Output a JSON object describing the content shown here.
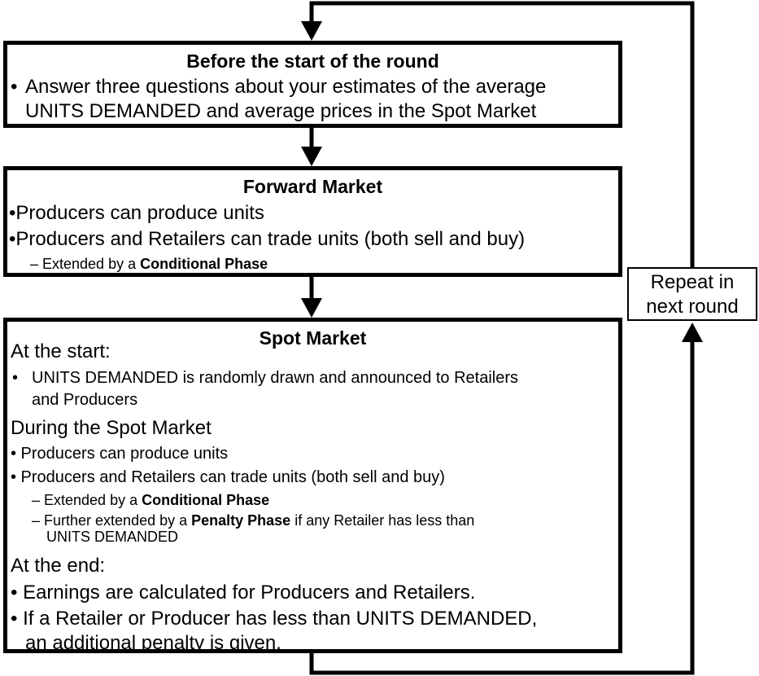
{
  "before": {
    "title": "Before the start of the round",
    "bullet": "•",
    "line1": "Answer three questions about your estimates of the average",
    "line2": "UNITS DEMANDED and average prices in the Spot Market"
  },
  "forward": {
    "title": "Forward Market",
    "item1": "•Producers can produce units",
    "item2": "•Producers and Retailers can trade units (both sell and buy)",
    "sub_prefix": "– Extended by a ",
    "sub_bold": "Conditional Phase"
  },
  "spot": {
    "title": "Spot Market",
    "start_heading": "At the start:",
    "start_bullet": "•",
    "start_line1": "UNITS DEMANDED is randomly drawn and announced to Retailers",
    "start_line2": "and Producers",
    "during_heading": "During the Spot Market",
    "during_item1": "• Producers can produce units",
    "during_item2": "• Producers and Retailers can trade units (both sell and buy)",
    "sub1_prefix": "– Extended by a ",
    "sub1_bold": "Conditional Phase",
    "sub2_prefix": "– Further extended by a ",
    "sub2_bold": "Penalty Phase",
    "sub2_suffix": " if any Retailer has less than",
    "sub2_line2": "UNITS DEMANDED",
    "end_heading": "At the end:",
    "end_item1": "• Earnings are calculated for Producers and Retailers.",
    "end_item2_line1": "• If a Retailer or Producer has less than UNITS DEMANDED,",
    "end_item2_line2": "an additional penalty is given."
  },
  "repeat": {
    "line1": "Repeat in",
    "line2": "next round"
  }
}
